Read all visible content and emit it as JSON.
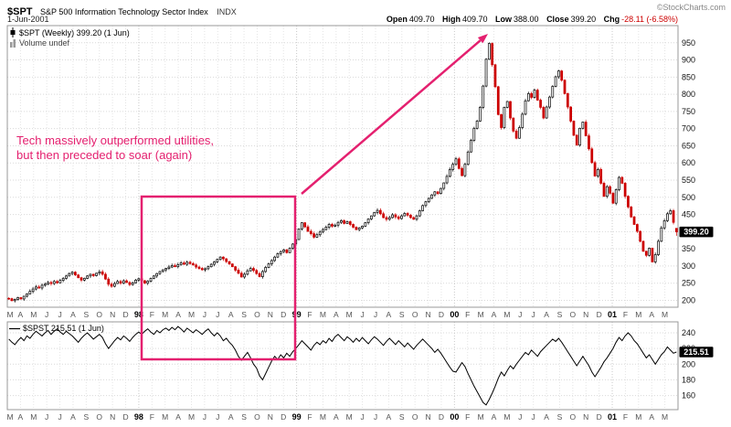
{
  "header": {
    "symbol": "$SPT",
    "title": "S&P 500 Information Technology Sector Index",
    "exchange": "INDX",
    "copyright": "©StockCharts.com",
    "date": "1-Jun-2001",
    "quote": {
      "open_label": "Open",
      "open": "409.70",
      "high_label": "High",
      "high": "409.70",
      "low_label": "Low",
      "low": "388.00",
      "close_label": "Close",
      "close": "399.20",
      "chg_label": "Chg",
      "chg": "-28.11 (-6.58%)"
    }
  },
  "annotations": {
    "line1": "Tech massively outperformed utilities,",
    "line2": "but then preceded to soar (again)",
    "color": "#e4206f"
  },
  "chart_data": [
    {
      "type": "candlestick",
      "title": "$SPT (Weekly)",
      "legend": "$SPT (Weekly) 399.20 (1 Jun)",
      "volume_legend": "Volume undef",
      "price_tag": "399.20",
      "last_value": 399.2,
      "last_ohlc": {
        "open": 409.7,
        "high": 409.7,
        "low": 388.0,
        "close": 399.2
      },
      "ylim": [
        180,
        1000
      ],
      "y_ticks": [
        200,
        250,
        300,
        350,
        400,
        450,
        500,
        550,
        600,
        650,
        700,
        750,
        800,
        850,
        900,
        950
      ],
      "up_color": "#000000",
      "down_color": "#cc0000",
      "x_labels": [
        "M",
        "A",
        "M",
        "J",
        "J",
        "A",
        "S",
        "O",
        "N",
        "D",
        "98",
        "F",
        "M",
        "A",
        "M",
        "J",
        "J",
        "A",
        "S",
        "O",
        "N",
        "D",
        "99",
        "F",
        "M",
        "A",
        "M",
        "J",
        "J",
        "A",
        "S",
        "O",
        "N",
        "D",
        "00",
        "F",
        "M",
        "A",
        "M",
        "J",
        "J",
        "A",
        "S",
        "O",
        "N",
        "D",
        "01",
        "F",
        "M",
        "A",
        "M"
      ],
      "closes": [
        205,
        199,
        203,
        208,
        204,
        212,
        219,
        226,
        233,
        239,
        236,
        244,
        247,
        252,
        249,
        255,
        251,
        258,
        264,
        271,
        278,
        282,
        274,
        266,
        259,
        264,
        271,
        276,
        272,
        279,
        283,
        276,
        262,
        247,
        241,
        249,
        255,
        250,
        257,
        252,
        246,
        251,
        259,
        263,
        257,
        250,
        256,
        264,
        271,
        278,
        284,
        289,
        293,
        297,
        301,
        298,
        304,
        309,
        305,
        311,
        307,
        303,
        297,
        293,
        289,
        292,
        298,
        305,
        312,
        319,
        326,
        321,
        313,
        306,
        298,
        288,
        279,
        268,
        276,
        286,
        293,
        287,
        278,
        269,
        284,
        296,
        306,
        316,
        326,
        336,
        342,
        347,
        339,
        352,
        364,
        377,
        408,
        426,
        414,
        401,
        394,
        384,
        391,
        399,
        406,
        413,
        421,
        416,
        419,
        427,
        432,
        424,
        429,
        421,
        413,
        406,
        411,
        416,
        426,
        437,
        446,
        456,
        462,
        452,
        441,
        436,
        441,
        449,
        443,
        438,
        446,
        453,
        448,
        441,
        436,
        446,
        461,
        476,
        487,
        497,
        507,
        516,
        511,
        526,
        542,
        561,
        581,
        596,
        612,
        584,
        563,
        596,
        632,
        666,
        701,
        722,
        762,
        824,
        902,
        948,
        886,
        822,
        741,
        703,
        762,
        779,
        731,
        693,
        672,
        703,
        742,
        781,
        802,
        791,
        812,
        783,
        762,
        731,
        763,
        792,
        823,
        851,
        868,
        841,
        802,
        763,
        722,
        681,
        652,
        701,
        719,
        679,
        641,
        601,
        562,
        581,
        541,
        503,
        531,
        512,
        483,
        522,
        558,
        541,
        503,
        472,
        443,
        421,
        401,
        372,
        343,
        331,
        352,
        312,
        333,
        372,
        411,
        432,
        452,
        461,
        427,
        399.2
      ]
    },
    {
      "type": "line",
      "title": "$SPST",
      "legend": "$SPST 215.51 (1 Jun)",
      "price_tag": "215.51",
      "last_value": 215.51,
      "ylim": [
        142,
        254
      ],
      "y_ticks": [
        160,
        180,
        200,
        220,
        240
      ],
      "color": "#000000",
      "values": [
        232,
        228,
        225,
        230,
        234,
        230,
        236,
        233,
        238,
        242,
        239,
        236,
        240,
        243,
        238,
        242,
        245,
        241,
        238,
        242,
        239,
        236,
        232,
        228,
        233,
        237,
        240,
        236,
        232,
        235,
        238,
        234,
        226,
        220,
        225,
        230,
        234,
        231,
        236,
        233,
        229,
        234,
        238,
        241,
        238,
        242,
        245,
        241,
        238,
        243,
        240,
        244,
        246,
        243,
        247,
        244,
        248,
        245,
        241,
        246,
        243,
        240,
        244,
        241,
        238,
        242,
        245,
        240,
        236,
        240,
        236,
        230,
        233,
        228,
        224,
        218,
        210,
        205,
        210,
        215,
        208,
        200,
        195,
        185,
        180,
        188,
        196,
        204,
        210,
        206,
        212,
        208,
        214,
        210,
        216,
        220,
        225,
        230,
        226,
        222,
        218,
        224,
        228,
        225,
        230,
        227,
        233,
        229,
        235,
        238,
        234,
        230,
        235,
        232,
        228,
        233,
        229,
        234,
        230,
        226,
        231,
        235,
        232,
        228,
        224,
        229,
        233,
        229,
        225,
        230,
        226,
        222,
        227,
        223,
        219,
        224,
        228,
        232,
        228,
        224,
        220,
        215,
        219,
        214,
        208,
        202,
        196,
        191,
        190,
        196,
        202,
        197,
        188,
        180,
        172,
        165,
        158,
        151,
        148,
        155,
        163,
        172,
        182,
        190,
        185,
        192,
        198,
        194,
        200,
        205,
        210,
        215,
        212,
        218,
        214,
        210,
        216,
        220,
        224,
        228,
        232,
        229,
        233,
        228,
        222,
        216,
        210,
        204,
        198,
        204,
        210,
        204,
        198,
        190,
        184,
        190,
        196,
        203,
        208,
        214,
        220,
        228,
        234,
        230,
        236,
        240,
        236,
        230,
        226,
        220,
        214,
        208,
        212,
        206,
        200,
        206,
        212,
        216,
        222,
        218,
        214,
        215.51
      ]
    }
  ]
}
